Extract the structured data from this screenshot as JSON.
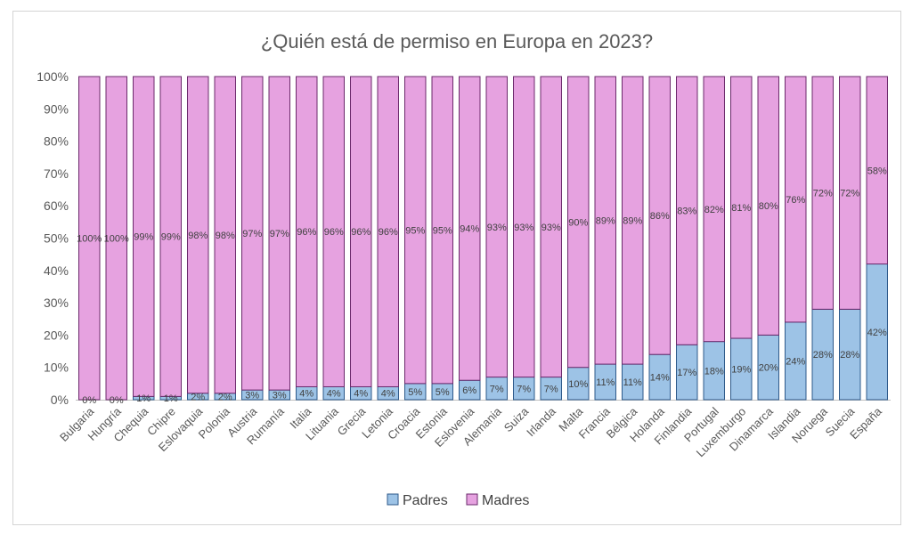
{
  "chart_data": {
    "type": "bar",
    "stacked": true,
    "percent_stacked": true,
    "title": "¿Quién está de permiso en Europa en 2023?",
    "xlabel": "",
    "ylabel": "",
    "ylim": [
      0,
      100
    ],
    "y_ticks": [
      "0%",
      "10%",
      "20%",
      "30%",
      "40%",
      "50%",
      "60%",
      "70%",
      "80%",
      "90%",
      "100%"
    ],
    "grid": false,
    "legend_position": "bottom",
    "categories": [
      "Bulgaria",
      "Hungría",
      "Chequia",
      "Chipre",
      "Eslovaquia",
      "Polonia",
      "Austria",
      "Rumanía",
      "Italia",
      "Lituania",
      "Grecia",
      "Letonia",
      "Croacia",
      "Estonia",
      "Eslovenia",
      "Alemania",
      "Suiza",
      "Irlanda",
      "Malta",
      "Francia",
      "Bélgica",
      "Holanda",
      "Finlandia",
      "Portugal",
      "Luxemburgo",
      "Dinamarca",
      "Islandia",
      "Noruega",
      "Suecia",
      "España"
    ],
    "series": [
      {
        "name": "Padres",
        "color": "#9dc3e6",
        "stroke": "#2e5a8a",
        "values": [
          0,
          0,
          1,
          1,
          2,
          2,
          3,
          3,
          4,
          4,
          4,
          4,
          5,
          5,
          6,
          7,
          7,
          7,
          10,
          11,
          11,
          14,
          17,
          18,
          19,
          20,
          24,
          28,
          28,
          42
        ],
        "labels": [
          "0%",
          "0%",
          "1%",
          "1%",
          "2%",
          "2%",
          "3%",
          "3%",
          "4%",
          "4%",
          "4%",
          "4%",
          "5%",
          "5%",
          "6%",
          "7%",
          "7%",
          "7%",
          "10%",
          "11%",
          "11%",
          "14%",
          "17%",
          "18%",
          "19%",
          "20%",
          "24%",
          "28%",
          "28%",
          "42%"
        ]
      },
      {
        "name": "Madres",
        "color": "#e6a2e0",
        "stroke": "#6b2a6b",
        "values": [
          100,
          100,
          99,
          99,
          98,
          98,
          97,
          97,
          96,
          96,
          96,
          96,
          95,
          95,
          94,
          93,
          93,
          93,
          90,
          89,
          89,
          86,
          83,
          82,
          81,
          80,
          76,
          72,
          72,
          58
        ],
        "labels": [
          "100%",
          "100%",
          "99%",
          "99%",
          "98%",
          "98%",
          "97%",
          "97%",
          "96%",
          "96%",
          "96%",
          "96%",
          "95%",
          "95%",
          "94%",
          "93%",
          "93%",
          "93%",
          "90%",
          "89%",
          "89%",
          "86%",
          "83%",
          "82%",
          "81%",
          "80%",
          "76%",
          "72%",
          "72%",
          "58%"
        ]
      }
    ]
  }
}
